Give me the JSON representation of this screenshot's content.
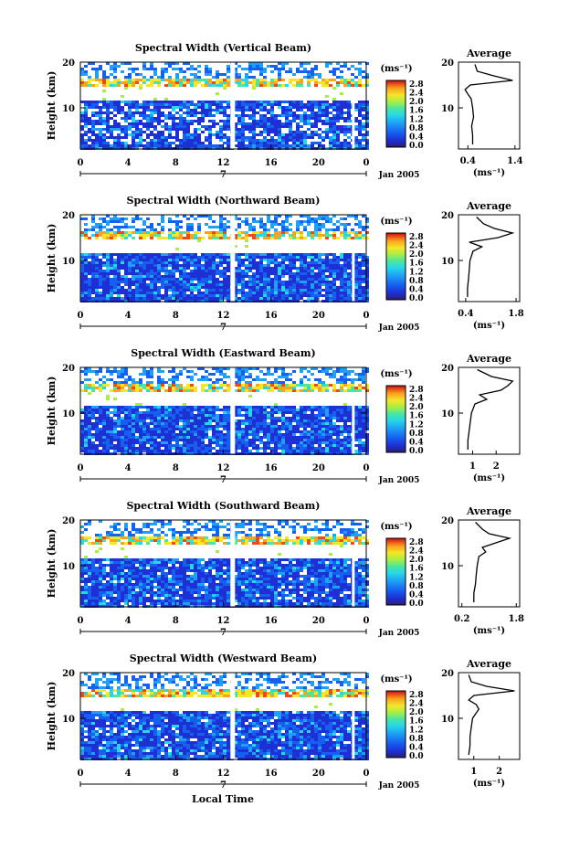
{
  "figure": {
    "date_label": "Jan 2005",
    "xlabel": "Local Time",
    "day_label": "7",
    "ylabel": "Height (km)",
    "colorbar_unit": "(ms⁻¹)",
    "average_title": "Average",
    "average_unit": "(ms⁻¹)",
    "colormap": [
      "#2a1f6e",
      "#1e2fd4",
      "#1660f0",
      "#1fa0f5",
      "#28d7e6",
      "#4be6a0",
      "#a8ef45",
      "#f5e62a",
      "#f7a51e",
      "#ea4b18",
      "#c01010"
    ]
  },
  "chart_data": [
    {
      "type": "heatmap",
      "title": "Spectral Width (Vertical Beam)",
      "xticks": [
        "0",
        "4",
        "8",
        "12",
        "16",
        "20",
        "0"
      ],
      "xlim": [
        0,
        24
      ],
      "yticks": [
        "20",
        "10"
      ],
      "ylim": [
        1,
        20
      ],
      "colorbar_ticks": [
        "2.8",
        "2.4",
        "2.0",
        "1.6",
        "1.2",
        "0.8",
        "0.4",
        "0.0"
      ],
      "avg_ticks": [
        "0.4",
        "1.4"
      ],
      "avg_xlim": [
        0.2,
        1.5
      ],
      "avg_profile": [
        [
          0.5,
          2
        ],
        [
          0.5,
          4
        ],
        [
          0.48,
          6
        ],
        [
          0.52,
          8
        ],
        [
          0.5,
          10
        ],
        [
          0.47,
          12
        ],
        [
          0.4,
          13
        ],
        [
          0.34,
          14
        ],
        [
          0.45,
          15
        ],
        [
          1.35,
          16
        ],
        [
          0.95,
          17
        ],
        [
          0.6,
          18
        ],
        [
          0.55,
          19.5
        ]
      ]
    },
    {
      "type": "heatmap",
      "title": "Spectral Width (Northward Beam)",
      "xticks": [
        "0",
        "4",
        "8",
        "12",
        "16",
        "20",
        "0"
      ],
      "xlim": [
        0,
        24
      ],
      "yticks": [
        "20",
        "10"
      ],
      "ylim": [
        1,
        20
      ],
      "colorbar_ticks": [
        "2.8",
        "2.4",
        "2.0",
        "1.6",
        "1.2",
        "0.8",
        "0.4",
        "0.0"
      ],
      "avg_ticks": [
        "0.4",
        "1.8"
      ],
      "avg_xlim": [
        0.2,
        1.9
      ],
      "avg_profile": [
        [
          0.45,
          2
        ],
        [
          0.45,
          4
        ],
        [
          0.48,
          6
        ],
        [
          0.5,
          8
        ],
        [
          0.52,
          10
        ],
        [
          0.6,
          12
        ],
        [
          0.85,
          13
        ],
        [
          0.5,
          14
        ],
        [
          1.3,
          15
        ],
        [
          1.7,
          16
        ],
        [
          1.2,
          17
        ],
        [
          0.9,
          18
        ],
        [
          0.7,
          19.5
        ]
      ]
    },
    {
      "type": "heatmap",
      "title": "Spectral Width (Eastward Beam)",
      "xticks": [
        "0",
        "4",
        "8",
        "12",
        "16",
        "20",
        "0"
      ],
      "xlim": [
        0,
        24
      ],
      "yticks": [
        "20",
        "10"
      ],
      "ylim": [
        1,
        20
      ],
      "colorbar_ticks": [
        "2.8",
        "2.4",
        "2.0",
        "1.6",
        "1.2",
        "0.8",
        "0.4",
        "0.0"
      ],
      "avg_ticks": [
        "1",
        "2"
      ],
      "avg_xlim": [
        0.4,
        3.0
      ],
      "avg_profile": [
        [
          0.8,
          2
        ],
        [
          0.8,
          4
        ],
        [
          0.85,
          6
        ],
        [
          0.9,
          8
        ],
        [
          0.95,
          10
        ],
        [
          1.1,
          12
        ],
        [
          1.6,
          13
        ],
        [
          1.3,
          14
        ],
        [
          2.2,
          15
        ],
        [
          2.5,
          16
        ],
        [
          2.7,
          17
        ],
        [
          1.8,
          18
        ],
        [
          1.2,
          19.5
        ]
      ]
    },
    {
      "type": "heatmap",
      "title": "Spectral Width (Southward Beam)",
      "xticks": [
        "0",
        "4",
        "8",
        "12",
        "16",
        "20",
        "0"
      ],
      "xlim": [
        0,
        24
      ],
      "yticks": [
        "20",
        "10"
      ],
      "ylim": [
        1,
        20
      ],
      "colorbar_ticks": [
        "2.8",
        "2.4",
        "2.0",
        "1.6",
        "1.2",
        "0.8",
        "0.4",
        "0.0"
      ],
      "avg_ticks": [
        "0.2",
        "1.8"
      ],
      "avg_xlim": [
        0.1,
        1.9
      ],
      "avg_profile": [
        [
          0.55,
          2
        ],
        [
          0.55,
          4
        ],
        [
          0.6,
          6
        ],
        [
          0.62,
          8
        ],
        [
          0.65,
          10
        ],
        [
          0.7,
          12
        ],
        [
          0.9,
          13
        ],
        [
          0.8,
          14
        ],
        [
          1.2,
          15
        ],
        [
          1.6,
          16
        ],
        [
          1.0,
          17
        ],
        [
          0.8,
          18
        ],
        [
          0.6,
          19.5
        ]
      ]
    },
    {
      "type": "heatmap",
      "title": "Spectral Width (Westward Beam)",
      "xticks": [
        "0",
        "4",
        "8",
        "12",
        "16",
        "20",
        "0"
      ],
      "xlim": [
        0,
        24
      ],
      "yticks": [
        "20",
        "10"
      ],
      "ylim": [
        1,
        20
      ],
      "colorbar_ticks": [
        "2.8",
        "2.4",
        "2.0",
        "1.6",
        "1.2",
        "0.8",
        "0.4",
        "0.0"
      ],
      "avg_ticks": [
        "1",
        "2"
      ],
      "avg_xlim": [
        0.4,
        2.8
      ],
      "avg_profile": [
        [
          0.8,
          2
        ],
        [
          0.85,
          4
        ],
        [
          0.85,
          6
        ],
        [
          0.9,
          8
        ],
        [
          0.95,
          10
        ],
        [
          1.2,
          12
        ],
        [
          1.1,
          13
        ],
        [
          0.8,
          14
        ],
        [
          1.0,
          15
        ],
        [
          2.6,
          16
        ],
        [
          1.5,
          17
        ],
        [
          0.9,
          18
        ],
        [
          0.8,
          19.5
        ]
      ]
    }
  ]
}
